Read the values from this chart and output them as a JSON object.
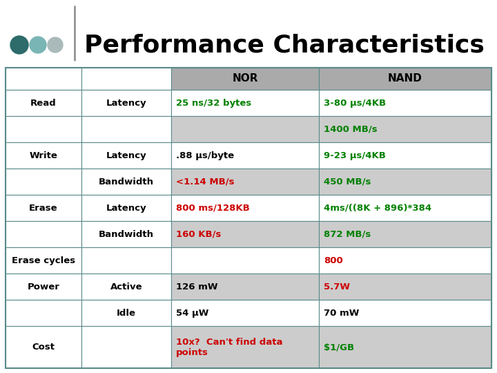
{
  "title": "Performance Characteristics",
  "background_color": "#ffffff",
  "header_bg": "#aaaaaa",
  "row_alt_bg": "#cccccc",
  "row_white_bg": "#ffffff",
  "left_col_bg": "#ffffff",
  "border_color": "#5a8a8a",
  "title_color": "#000000",
  "dot_colors": [
    "#2e6b6b",
    "#7ab5b5",
    "#aababa"
  ],
  "col_headers": [
    "NOR",
    "NAND"
  ],
  "fig_w": 7.2,
  "fig_h": 5.4,
  "dpi": 100,
  "table_rows": [
    {
      "col0": "Read",
      "col1": "Latency",
      "col2": "25 ns/32 bytes",
      "col2_color": "#008000",
      "col3": "3-80 μs/4KB",
      "col3_color": "#008000",
      "row_shade": "white"
    },
    {
      "col0": "",
      "col1": "",
      "col2": "",
      "col2_color": "#008000",
      "col3": "1400 MB/s",
      "col3_color": "#008000",
      "row_shade": "gray"
    },
    {
      "col0": "Write",
      "col1": "Latency",
      "col2": ".88 μs/byte",
      "col2_color": "#000000",
      "col3": "9-23 μs/4KB",
      "col3_color": "#008000",
      "row_shade": "white"
    },
    {
      "col0": "",
      "col1": "Bandwidth",
      "col2": "<1.14 MB/s",
      "col2_color": "#cc0000",
      "col3": "450 MB/s",
      "col3_color": "#008000",
      "row_shade": "gray"
    },
    {
      "col0": "Erase",
      "col1": "Latency",
      "col2": "800 ms/128KB",
      "col2_color": "#cc0000",
      "col3": "4ms/((8K + 896)*384",
      "col3_color": "#008000",
      "row_shade": "white"
    },
    {
      "col0": "",
      "col1": "Bandwidth",
      "col2": "160 KB/s",
      "col2_color": "#cc0000",
      "col3": "872 MB/s",
      "col3_color": "#008000",
      "row_shade": "gray"
    },
    {
      "col0": "Erase cycles",
      "col1": "",
      "col2": "",
      "col2_color": "#000000",
      "col3": "800",
      "col3_color": "#cc0000",
      "row_shade": "white"
    },
    {
      "col0": "Power",
      "col1": "Active",
      "col2": "126 mW",
      "col2_color": "#000000",
      "col3": "5.7W",
      "col3_color": "#cc0000",
      "row_shade": "gray"
    },
    {
      "col0": "",
      "col1": "Idle",
      "col2": "54 μW",
      "col2_color": "#000000",
      "col3": "70 mW",
      "col3_color": "#000000",
      "row_shade": "white"
    },
    {
      "col0": "Cost",
      "col1": "",
      "col2": "10x?  Can't find data\npoints",
      "col2_color": "#cc0000",
      "col3": "$1/GB",
      "col3_color": "#008000",
      "row_shade": "gray"
    }
  ]
}
